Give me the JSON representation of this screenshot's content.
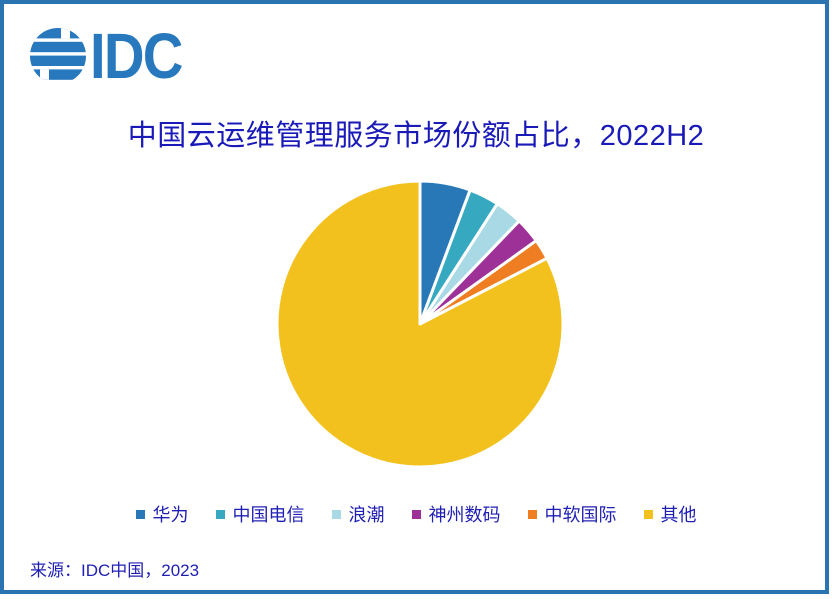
{
  "frame": {
    "border_color": "#2B74B2",
    "background": "#FFFFFF"
  },
  "logo": {
    "text": "IDC",
    "color": "#2878BE",
    "globe_icon": "idc-striped-globe"
  },
  "title": {
    "text": "中国云运维管理服务市场份额占比，2022H2",
    "color": "#1A1AB8"
  },
  "source": {
    "text": "来源：IDC中国，2023",
    "color": "#1F1FB4"
  },
  "legend_text_color": "#1F1FB4",
  "chart_data": {
    "type": "pie",
    "title": "中国云运维管理服务市场份额占比，2022H2",
    "unit": "percent",
    "start_angle_deg": 0,
    "clockwise": true,
    "gap_color": "#FFFFFF",
    "legend_position": "bottom",
    "slices": [
      {
        "label": "华为",
        "value": 5.7,
        "color": "#2878B8"
      },
      {
        "label": "中国电信",
        "value": 3.4,
        "color": "#36A9C1"
      },
      {
        "label": "浪潮",
        "value": 3.1,
        "color": "#A9D9E4"
      },
      {
        "label": "神州数码",
        "value": 2.9,
        "color": "#9D3198"
      },
      {
        "label": "中软国际",
        "value": 2.3,
        "color": "#EF7D22"
      },
      {
        "label": "其他",
        "value": 82.6,
        "color": "#F3C11D"
      }
    ]
  }
}
